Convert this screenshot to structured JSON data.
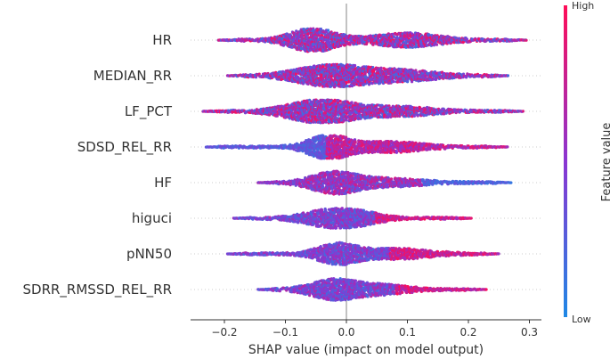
{
  "chart_data": {
    "type": "beeswarm",
    "xlabel": "SHAP value (impact on model output)",
    "xlim": [
      -0.26,
      0.32
    ],
    "xticks": [
      -0.2,
      -0.1,
      0.0,
      0.1,
      0.2,
      0.3
    ],
    "xtick_labels": [
      "−0.2",
      "−0.1",
      "0.0",
      "0.1",
      "0.2",
      "0.3"
    ],
    "colorbar": {
      "label": "Feature value",
      "high": "High",
      "low": "Low",
      "low_color": "#1e88e5",
      "high_color": "#ff0d57"
    },
    "features": [
      {
        "name": "HR",
        "min": -0.21,
        "max": 0.295,
        "peaks": [
          [
            -0.055,
            0.95,
            0.035
          ],
          [
            0.1,
            0.55,
            0.05
          ]
        ],
        "tint": "mixed"
      },
      {
        "name": "MEDIAN_RR",
        "min": -0.195,
        "max": 0.265,
        "peaks": [
          [
            -0.03,
            0.8,
            0.05
          ],
          [
            0.08,
            0.45,
            0.06
          ]
        ],
        "tint": "mixed"
      },
      {
        "name": "LF_PCT",
        "min": -0.235,
        "max": 0.29,
        "peaks": [
          [
            -0.04,
            0.95,
            0.05
          ],
          [
            0.09,
            0.35,
            0.05
          ]
        ],
        "tint": "mixed"
      },
      {
        "name": "SDSD_REL_RR",
        "min": -0.23,
        "max": 0.265,
        "peaks": [
          [
            -0.03,
            0.95,
            0.03
          ],
          [
            0.07,
            0.4,
            0.05
          ]
        ],
        "tint": "low-left"
      },
      {
        "name": "HF",
        "min": -0.145,
        "max": 0.27,
        "peaks": [
          [
            -0.02,
            0.85,
            0.035
          ],
          [
            0.07,
            0.3,
            0.05
          ]
        ],
        "tint": "low-right"
      },
      {
        "name": "higuci",
        "min": -0.185,
        "max": 0.205,
        "peaks": [
          [
            -0.025,
            0.7,
            0.04
          ],
          [
            0.03,
            0.3,
            0.03
          ]
        ],
        "tint": "high-right"
      },
      {
        "name": "pNN50",
        "min": -0.195,
        "max": 0.25,
        "peaks": [
          [
            -0.015,
            0.8,
            0.03
          ],
          [
            0.08,
            0.4,
            0.05
          ]
        ],
        "tint": "high-right"
      },
      {
        "name": "SDRR_RMSSD_REL_RR",
        "min": -0.145,
        "max": 0.23,
        "peaks": [
          [
            -0.02,
            0.8,
            0.035
          ],
          [
            0.06,
            0.35,
            0.04
          ]
        ],
        "tint": "high-right"
      }
    ]
  }
}
